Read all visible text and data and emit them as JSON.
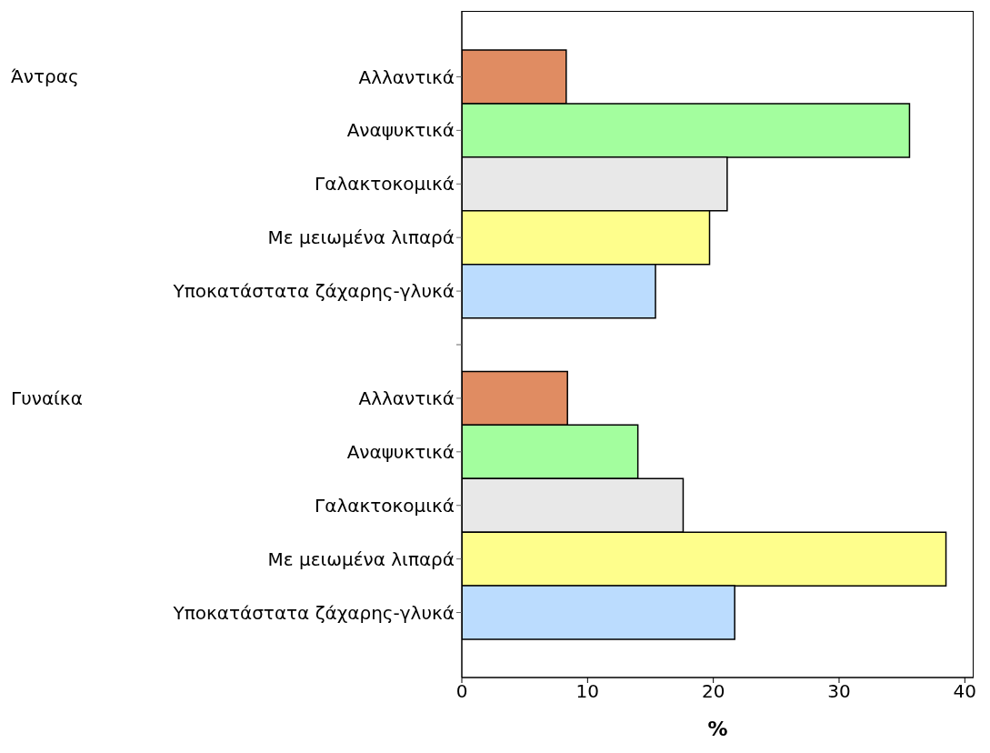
{
  "chart_data": {
    "type": "bar",
    "orientation": "horizontal",
    "xlabel": "%",
    "categories": [
      "Αλλαντικά",
      "Αναψυκτικά",
      "Γαλακτοκομικά",
      "Με μειωμένα λιπαρά",
      "Υποκατάστατα ζάχαρης-γλυκά",
      null,
      "Αλλαντικά",
      "Αναψυκτικά",
      "Γαλακτοκομικά",
      "Με μειωμένα λιπαρά",
      "Υποκατάστατα ζάχαρης-γλυκά"
    ],
    "values": [
      8.3,
      35.6,
      21.1,
      19.7,
      15.4,
      null,
      8.4,
      14.0,
      17.6,
      38.5,
      21.7
    ],
    "colors": [
      "#e08c62",
      "#a3fe9e",
      "#e8e8e8",
      "#fefe8c",
      "#bbdcfe",
      null,
      "#e08c62",
      "#a3fe9e",
      "#e8e8e8",
      "#fefe8c",
      "#bbdcfe"
    ],
    "annotations": [
      "Άντρας",
      "Γυναίκα"
    ],
    "xlim": [
      0,
      40.7
    ],
    "xticks": [
      0,
      10,
      20,
      30,
      40
    ],
    "grid": false,
    "legend": false
  }
}
